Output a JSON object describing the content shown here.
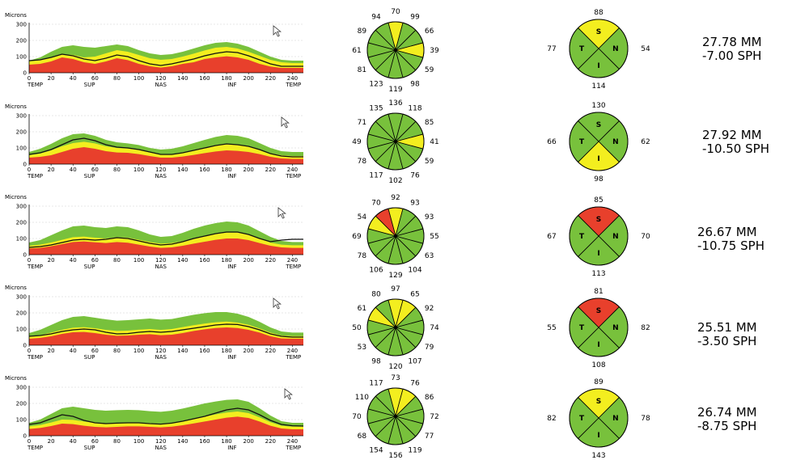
{
  "colors": {
    "red": "#e8402c",
    "yellow": "#f3ee1f",
    "green": "#78c13c",
    "line": "#111111",
    "grid": "#cfcfcf"
  },
  "chart_data": [
    {
      "type": "area",
      "ylabel": "Microns",
      "ylim": [
        0,
        300
      ],
      "yticks": [
        0,
        100,
        200,
        300
      ],
      "xticks": [
        0,
        20,
        40,
        60,
        80,
        100,
        120,
        140,
        160,
        180,
        200,
        220,
        240
      ],
      "xregions": [
        "TEMP",
        "SUP",
        "NAS",
        "INF",
        "TEMP"
      ],
      "grid": true,
      "series": [
        {
          "name": "",
          "values": [
            75,
            80,
            95,
            115,
            105,
            85,
            75,
            90,
            110,
            100,
            75,
            55,
            45,
            55,
            70,
            85,
            105,
            120,
            130,
            125,
            105,
            80,
            55,
            40,
            40,
            40
          ]
        },
        {
          "name": "",
          "values": [
            50,
            55,
            70,
            95,
            85,
            65,
            55,
            70,
            90,
            78,
            55,
            40,
            32,
            40,
            55,
            65,
            85,
            95,
            102,
            95,
            80,
            55,
            38,
            30,
            30,
            30
          ]
        },
        {
          "name": "",
          "values": [
            70,
            78,
            95,
            115,
            110,
            95,
            100,
            120,
            140,
            130,
            110,
            90,
            80,
            85,
            100,
            118,
            138,
            155,
            160,
            150,
            130,
            105,
            80,
            65,
            60,
            60
          ]
        },
        {
          "name": "",
          "values": [
            75,
            95,
            130,
            160,
            170,
            160,
            155,
            165,
            175,
            165,
            140,
            120,
            110,
            115,
            130,
            150,
            170,
            185,
            190,
            180,
            160,
            130,
            100,
            80,
            75,
            75
          ]
        }
      ]
    },
    {
      "type": "area",
      "ylabel": "Microns",
      "ylim": [
        0,
        300
      ],
      "yticks": [
        0,
        100,
        200,
        300
      ],
      "xticks": [
        0,
        20,
        40,
        60,
        80,
        100,
        120,
        140,
        160,
        180,
        200,
        220,
        240
      ],
      "xregions": [
        "TEMP",
        "SUP",
        "NAS",
        "INF",
        "TEMP"
      ],
      "grid": true,
      "series": [
        {
          "name": "",
          "values": [
            60,
            70,
            90,
            120,
            150,
            160,
            145,
            120,
            105,
            100,
            90,
            75,
            60,
            60,
            70,
            85,
            100,
            115,
            125,
            120,
            110,
            90,
            65,
            50,
            45,
            45
          ]
        },
        {
          "name": "",
          "values": [
            40,
            45,
            55,
            75,
            95,
            105,
            95,
            80,
            72,
            70,
            62,
            50,
            40,
            40,
            47,
            57,
            68,
            78,
            85,
            82,
            75,
            62,
            45,
            35,
            32,
            32
          ]
        },
        {
          "name": "",
          "values": [
            55,
            65,
            85,
            110,
            130,
            138,
            128,
            110,
            100,
            96,
            88,
            72,
            60,
            60,
            70,
            84,
            100,
            115,
            123,
            120,
            110,
            90,
            68,
            55,
            50,
            50
          ]
        },
        {
          "name": "",
          "values": [
            75,
            95,
            125,
            160,
            185,
            190,
            175,
            150,
            135,
            128,
            118,
            100,
            90,
            95,
            110,
            130,
            150,
            168,
            180,
            175,
            160,
            130,
            100,
            80,
            75,
            75
          ]
        }
      ]
    },
    {
      "type": "area",
      "ylabel": "Microns",
      "ylim": [
        0,
        300
      ],
      "yticks": [
        0,
        100,
        200,
        300
      ],
      "xticks": [
        0,
        20,
        40,
        60,
        80,
        100,
        120,
        140,
        160,
        180,
        200,
        220,
        240
      ],
      "xregions": [
        "TEMP",
        "SUP",
        "NAS",
        "INF",
        "TEMP"
      ],
      "grid": true,
      "series": [
        {
          "name": "",
          "values": [
            45,
            50,
            60,
            75,
            90,
            95,
            90,
            95,
            105,
            100,
            85,
            70,
            60,
            65,
            80,
            100,
            115,
            130,
            140,
            140,
            125,
            100,
            80,
            90,
            95,
            95
          ]
        },
        {
          "name": "",
          "values": [
            38,
            42,
            52,
            65,
            78,
            82,
            76,
            72,
            78,
            74,
            62,
            50,
            42,
            45,
            55,
            68,
            80,
            92,
            100,
            100,
            90,
            72,
            55,
            45,
            42,
            42
          ]
        },
        {
          "name": "",
          "values": [
            55,
            62,
            75,
            92,
            108,
            112,
            105,
            100,
            108,
            105,
            92,
            78,
            68,
            72,
            84,
            100,
            115,
            128,
            136,
            136,
            124,
            100,
            75,
            62,
            58,
            58
          ]
        },
        {
          "name": "",
          "values": [
            75,
            90,
            120,
            150,
            175,
            180,
            170,
            165,
            175,
            170,
            150,
            125,
            110,
            115,
            135,
            160,
            180,
            195,
            205,
            200,
            180,
            145,
            110,
            85,
            78,
            78
          ]
        }
      ]
    },
    {
      "type": "area",
      "ylabel": "Microns",
      "ylim": [
        0,
        300
      ],
      "yticks": [
        0,
        100,
        200,
        300
      ],
      "xticks": [
        0,
        20,
        40,
        60,
        80,
        100,
        120,
        140,
        160,
        180,
        200,
        220,
        240
      ],
      "xregions": [
        "TEMP",
        "SUP",
        "NAS",
        "INF",
        "TEMP"
      ],
      "grid": true,
      "series": [
        {
          "name": "",
          "values": [
            55,
            60,
            70,
            85,
            95,
            100,
            95,
            80,
            70,
            72,
            80,
            85,
            80,
            85,
            95,
            105,
            115,
            125,
            130,
            128,
            115,
            95,
            70,
            55,
            50,
            50
          ]
        },
        {
          "name": "",
          "values": [
            40,
            45,
            55,
            70,
            80,
            82,
            75,
            65,
            58,
            60,
            65,
            68,
            62,
            65,
            75,
            88,
            98,
            106,
            110,
            106,
            95,
            78,
            55,
            42,
            40,
            40
          ]
        },
        {
          "name": "",
          "values": [
            55,
            62,
            78,
            95,
            108,
            112,
            105,
            95,
            88,
            90,
            96,
            100,
            95,
            100,
            112,
            124,
            134,
            142,
            146,
            140,
            126,
            104,
            78,
            60,
            56,
            56
          ]
        },
        {
          "name": "",
          "values": [
            75,
            95,
            125,
            155,
            175,
            180,
            170,
            160,
            152,
            155,
            160,
            165,
            158,
            162,
            175,
            188,
            198,
            205,
            205,
            195,
            175,
            145,
            110,
            85,
            78,
            78
          ]
        }
      ]
    },
    {
      "type": "area",
      "ylabel": "Microns",
      "ylim": [
        0,
        300
      ],
      "yticks": [
        0,
        100,
        200,
        300
      ],
      "xticks": [
        0,
        20,
        40,
        60,
        80,
        100,
        120,
        140,
        160,
        180,
        200,
        220,
        240
      ],
      "xregions": [
        "TEMP",
        "SUP",
        "NAS",
        "INF",
        "TEMP"
      ],
      "grid": true,
      "series": [
        {
          "name": "",
          "values": [
            70,
            80,
            105,
            130,
            120,
            95,
            80,
            75,
            78,
            80,
            80,
            75,
            72,
            78,
            90,
            105,
            120,
            140,
            160,
            170,
            160,
            130,
            95,
            70,
            62,
            60
          ]
        },
        {
          "name": "",
          "values": [
            42,
            48,
            60,
            75,
            72,
            62,
            55,
            52,
            55,
            58,
            58,
            55,
            52,
            56,
            65,
            76,
            88,
            100,
            112,
            118,
            110,
            88,
            62,
            45,
            40,
            40
          ]
        },
        {
          "name": "",
          "values": [
            58,
            66,
            82,
            100,
            98,
            88,
            80,
            76,
            78,
            82,
            82,
            78,
            75,
            80,
            90,
            104,
            118,
            132,
            144,
            150,
            140,
            114,
            84,
            62,
            56,
            56
          ]
        },
        {
          "name": "",
          "values": [
            80,
            100,
            135,
            170,
            180,
            170,
            160,
            155,
            158,
            160,
            158,
            152,
            148,
            155,
            168,
            184,
            200,
            212,
            222,
            225,
            210,
            170,
            125,
            90,
            80,
            80
          ]
        }
      ]
    }
  ],
  "clock_charts": [
    {
      "values_ccw_from_top": [
        70,
        94,
        89,
        61,
        81,
        123,
        119,
        98,
        59,
        39,
        66,
        99
      ],
      "colors_ccw_from_top": [
        "yellow",
        "green",
        "green",
        "green",
        "green",
        "green",
        "green",
        "green",
        "green",
        "yellow",
        "green",
        "green"
      ]
    },
    {
      "values_ccw_from_top": [
        136,
        135,
        71,
        49,
        78,
        117,
        102,
        76,
        59,
        41,
        85,
        118
      ],
      "colors_ccw_from_top": [
        "green",
        "green",
        "green",
        "green",
        "green",
        "green",
        "green",
        "green",
        "green",
        "yellow",
        "green",
        "green"
      ]
    },
    {
      "values_ccw_from_top": [
        92,
        70,
        54,
        69,
        78,
        106,
        129,
        104,
        63,
        55,
        93,
        93
      ],
      "colors_ccw_from_top": [
        "yellow",
        "red",
        "yellow",
        "green",
        "green",
        "green",
        "green",
        "green",
        "green",
        "green",
        "green",
        "green"
      ]
    },
    {
      "values_ccw_from_top": [
        97,
        80,
        61,
        50,
        53,
        98,
        120,
        107,
        79,
        74,
        92,
        65
      ],
      "colors_ccw_from_top": [
        "yellow",
        "green",
        "yellow",
        "green",
        "green",
        "green",
        "green",
        "green",
        "green",
        "green",
        "green",
        "yellow"
      ]
    },
    {
      "values_ccw_from_top": [
        73,
        117,
        110,
        70,
        68,
        154,
        156,
        119,
        77,
        72,
        86,
        76
      ],
      "colors_ccw_from_top": [
        "yellow",
        "green",
        "green",
        "green",
        "green",
        "green",
        "green",
        "green",
        "green",
        "green",
        "green",
        "yellow"
      ]
    }
  ],
  "quadrant_charts": [
    {
      "S": 88,
      "T": 77,
      "N": 54,
      "I": 114,
      "colors": {
        "S": "yellow",
        "T": "green",
        "N": "green",
        "I": "green"
      }
    },
    {
      "S": 130,
      "T": 66,
      "N": 62,
      "I": 98,
      "colors": {
        "S": "green",
        "T": "green",
        "N": "green",
        "I": "yellow"
      }
    },
    {
      "S": 85,
      "T": 67,
      "N": 70,
      "I": 113,
      "colors": {
        "S": "red",
        "T": "green",
        "N": "green",
        "I": "green"
      }
    },
    {
      "S": 81,
      "T": 55,
      "N": 82,
      "I": 108,
      "colors": {
        "S": "red",
        "T": "green",
        "N": "green",
        "I": "green"
      }
    },
    {
      "S": 89,
      "T": 82,
      "N": 78,
      "I": 143,
      "colors": {
        "S": "yellow",
        "T": "green",
        "N": "green",
        "I": "green"
      }
    }
  ],
  "quadrant_letters": {
    "S": "S",
    "T": "T",
    "N": "N",
    "I": "I"
  },
  "measurements": [
    {
      "axial": "27.78 MM",
      "refraction": "-7.00 SPH"
    },
    {
      "axial": "27.92 MM",
      "refraction": "-10.50 SPH"
    },
    {
      "axial": "26.67 MM",
      "refraction": "-10.75 SPH"
    },
    {
      "axial": "25.51 MM",
      "refraction": "-3.50 SPH"
    },
    {
      "axial": "26.74 MM",
      "refraction": "-8.75 SPH"
    }
  ]
}
